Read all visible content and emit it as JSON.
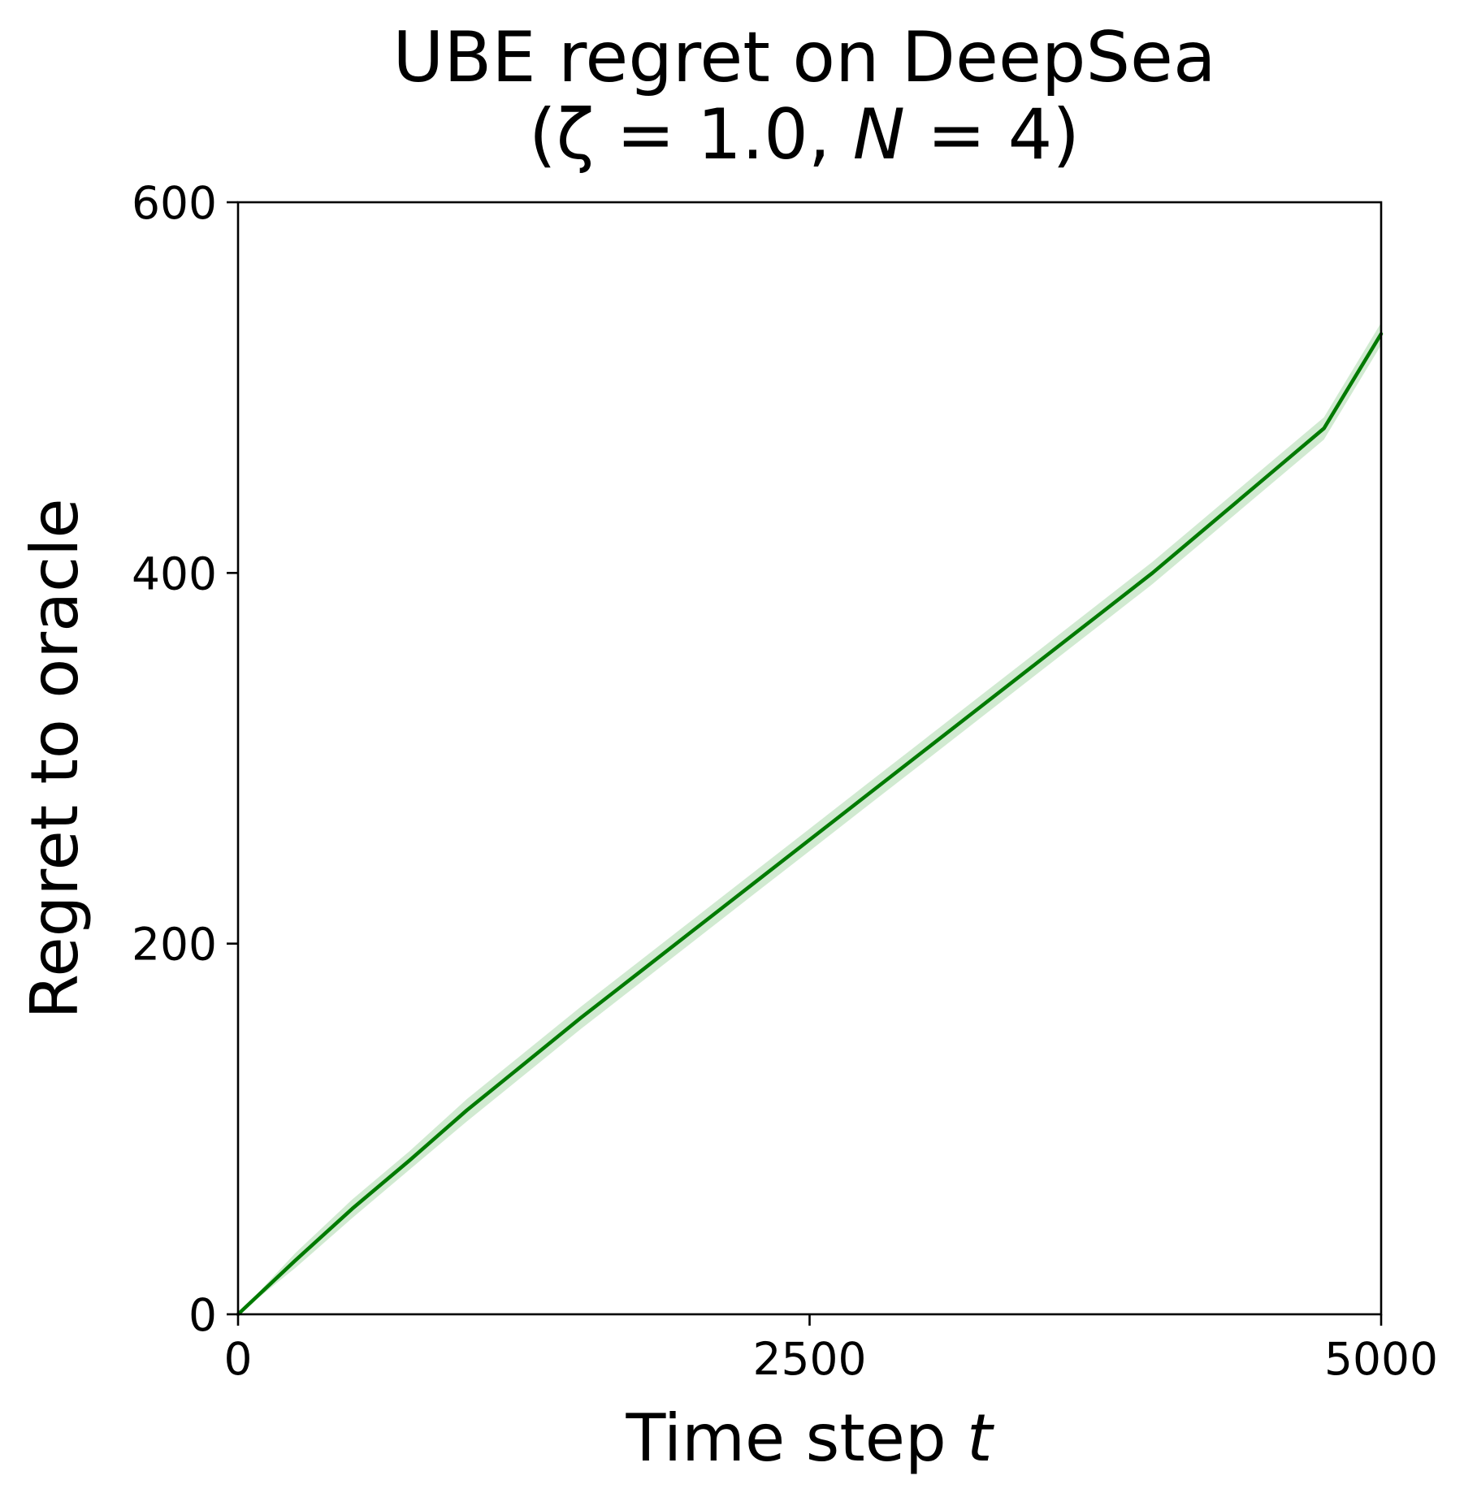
{
  "chart_data": {
    "type": "line",
    "title": "UBE regret on DeepSea",
    "subtitle": "(ζ = 1.0, N = 4)",
    "xlabel": "Time step t",
    "ylabel": "Regret to oracle",
    "xlim": [
      0,
      5000
    ],
    "ylim": [
      0,
      600
    ],
    "xticks": [
      0,
      2500,
      5000
    ],
    "yticks": [
      0,
      200,
      400,
      600
    ],
    "xtick_labels": [
      "0",
      "2500",
      "5000"
    ],
    "ytick_labels": [
      "0",
      "200",
      "400",
      "600"
    ],
    "grid": false,
    "legend": "none",
    "colors": {
      "line": "#007a00",
      "band": "#2ca02c",
      "band_opacity": 0.22
    },
    "series": [
      {
        "x": [
          0,
          250,
          500,
          750,
          1000,
          1250,
          1500,
          1750,
          2000,
          2250,
          2500,
          2750,
          3000,
          3250,
          3500,
          3750,
          4000,
          4250,
          4500,
          4750,
          5000
        ],
        "values": [
          0,
          29,
          57,
          83,
          110,
          135,
          160,
          184,
          208,
          232,
          256,
          280,
          304,
          328,
          352,
          376,
          400,
          426,
          452,
          478,
          529
        ],
        "lower": [
          0,
          25,
          52,
          78,
          104,
          129,
          154,
          178,
          202,
          226,
          250,
          274,
          298,
          322,
          346,
          370,
          394,
          420,
          446,
          472,
          523
        ],
        "upper": [
          0,
          33,
          62,
          88,
          116,
          141,
          166,
          190,
          214,
          238,
          262,
          286,
          310,
          334,
          358,
          382,
          406,
          432,
          458,
          484,
          535
        ]
      }
    ]
  }
}
